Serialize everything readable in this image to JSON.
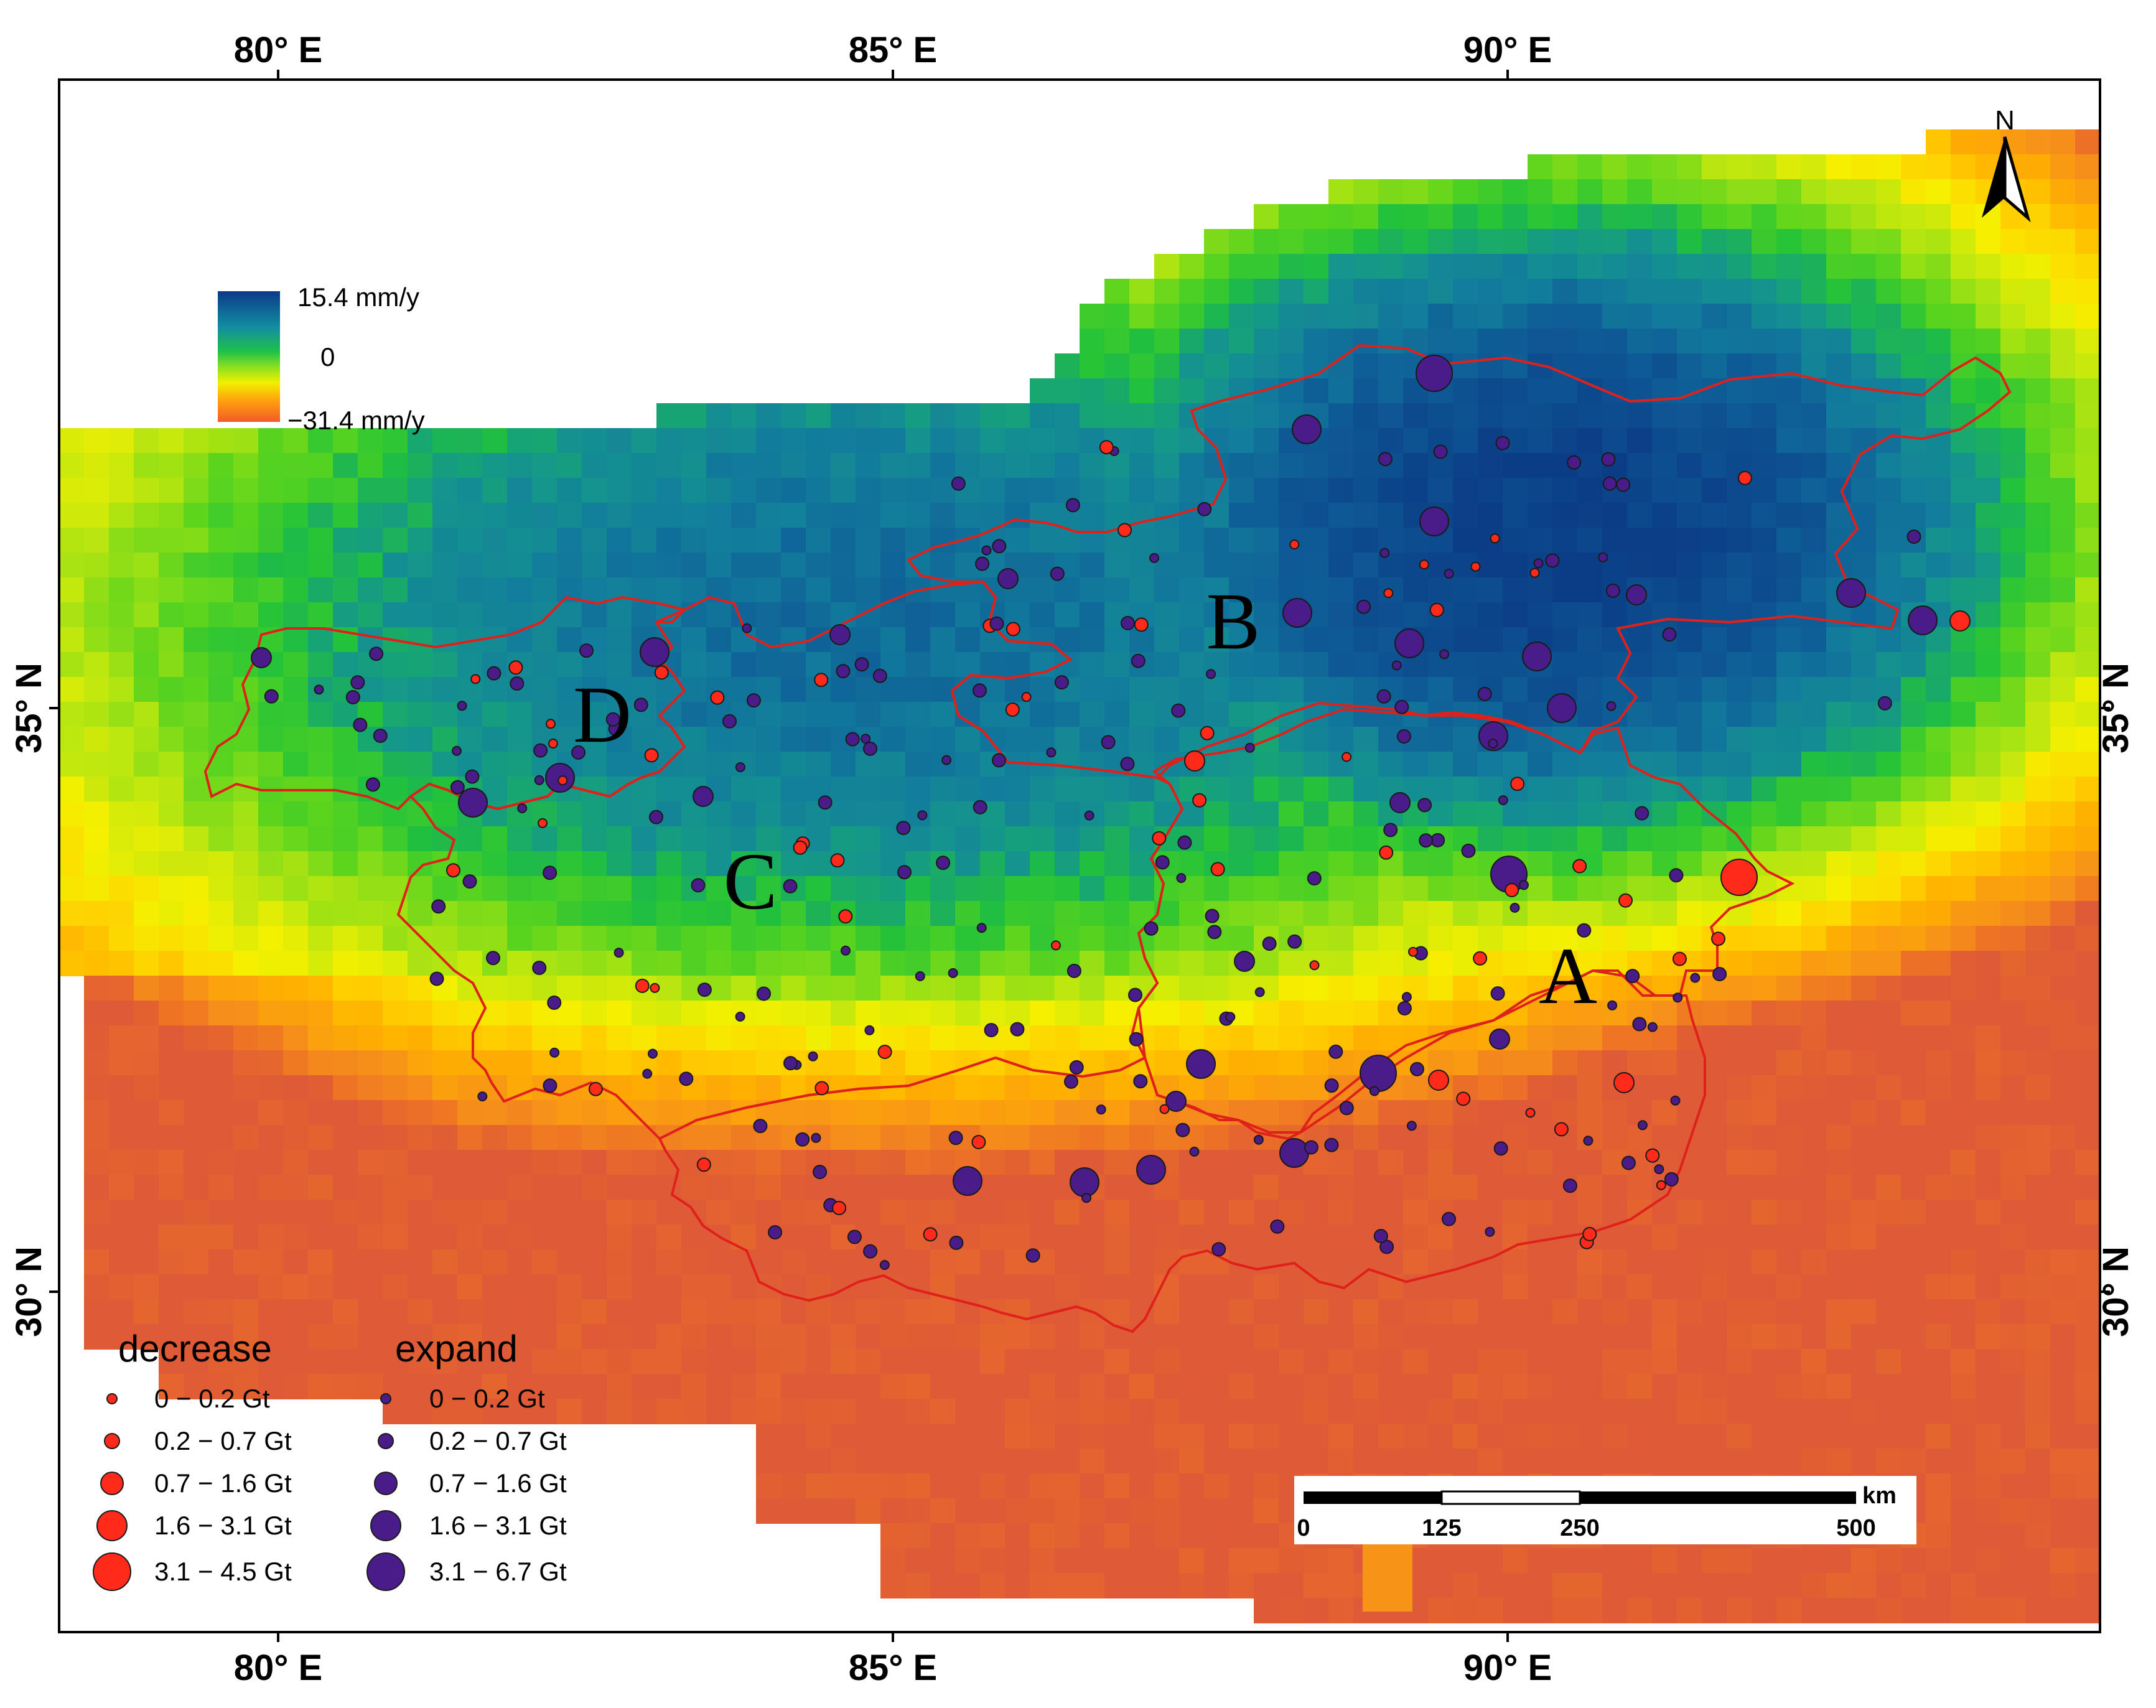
{
  "axes": {
    "top": [
      {
        "label": "80° E",
        "lon": 80
      },
      {
        "label": "85° E",
        "lon": 85
      },
      {
        "label": "90° E",
        "lon": 90
      }
    ],
    "bottom": [
      {
        "label": "80° E",
        "lon": 80
      },
      {
        "label": "85° E",
        "lon": 85
      },
      {
        "label": "90° E",
        "lon": 90
      }
    ],
    "left": [
      {
        "label": "35° N",
        "lat": 35
      },
      {
        "label": "30° N",
        "lat": 30
      }
    ],
    "right": [
      {
        "label": "35° N",
        "lat": 35
      },
      {
        "label": "30° N",
        "lat": 30
      }
    ]
  },
  "colorbar": {
    "max_label": "15.4 mm/y",
    "zero_label": "0",
    "min_label": "−31.4 mm/y",
    "colors": [
      "#0a3a8a",
      "#138fa0",
      "#22c840",
      "#8ae020",
      "#f2f000",
      "#ff9a10",
      "#f05a28"
    ]
  },
  "regions": [
    {
      "label": "A",
      "name": "region-a"
    },
    {
      "label": "B",
      "name": "region-b"
    },
    {
      "label": "C",
      "name": "region-c"
    },
    {
      "label": "D",
      "name": "region-d"
    }
  ],
  "legend": {
    "decrease": {
      "title": "decrease",
      "color": "#ff2a1a",
      "classes": [
        "0 − 0.2 Gt",
        "0.2 − 0.7 Gt",
        "0.7 − 1.6 Gt",
        "1.6 − 3.1 Gt",
        "3.1 − 4.5 Gt"
      ]
    },
    "expand": {
      "title": "expand",
      "color": "#4a1c8a",
      "classes": [
        "0 − 0.2 Gt",
        "0.2 − 0.7 Gt",
        "0.7 − 1.6 Gt",
        "1.6 − 3.1 Gt",
        "3.1 − 6.7 Gt"
      ]
    }
  },
  "scale_bar": {
    "unit": "km",
    "ticks": [
      "0",
      "125",
      "250",
      "500"
    ]
  },
  "north_arrow": {
    "label": "N"
  },
  "colors": {
    "boundary": "#e0201a",
    "marker_outline": "#1a1a1a",
    "frame": "#000000"
  }
}
